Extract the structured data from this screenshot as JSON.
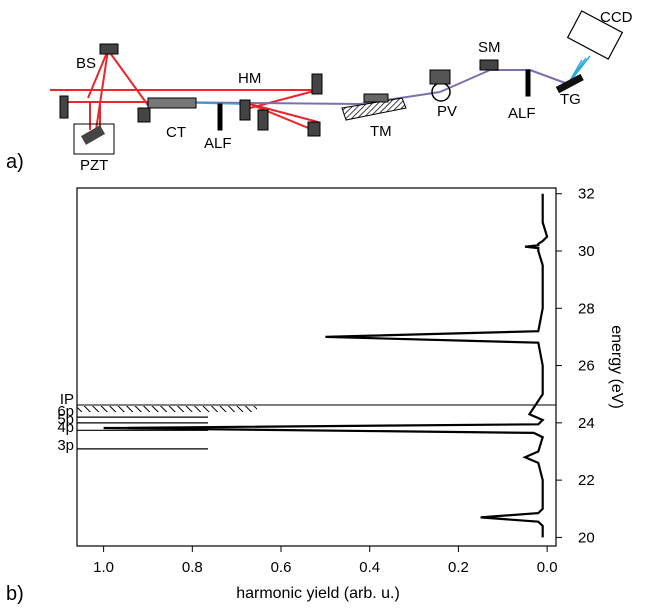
{
  "panel_a": {
    "label": "a)",
    "components": {
      "hm": "HM",
      "bs": "BS",
      "pzt": "PZT",
      "ct": "CT",
      "alf1": "ALF",
      "alf2": "ALF",
      "tm": "TM",
      "pv": "PV",
      "sm": "SM",
      "tg": "TG",
      "ccd": "CCD"
    },
    "colors": {
      "beam_ir": "#e8262b",
      "beam_xuv": "#7a6fb0",
      "beam_xuv_out": "#29a9e0"
    }
  },
  "panel_b": {
    "label": "b)",
    "levels": [
      {
        "label": "IP",
        "energy": 24.59
      },
      {
        "label": "6p",
        "energy": 24.2
      },
      {
        "label": "5p",
        "energy": 24.0
      },
      {
        "label": "4p",
        "energy": 23.74
      },
      {
        "label": "3p",
        "energy": 23.09
      }
    ]
  },
  "chart_data": {
    "type": "line",
    "xlabel": "harmonic yield (arb. u.)",
    "ylabel": "energy (eV)",
    "xlim": [
      1.06,
      -0.02
    ],
    "ylim": [
      19.7,
      32.2
    ],
    "x_ticks": [
      "1.0",
      "0.8",
      "0.6",
      "0.4",
      "0.2",
      "0.0"
    ],
    "x_tick_values": [
      1.0,
      0.8,
      0.6,
      0.4,
      0.2,
      0.0
    ],
    "y_ticks": [
      "20",
      "22",
      "24",
      "26",
      "28",
      "30",
      "32"
    ],
    "y_tick_values": [
      20,
      22,
      24,
      26,
      28,
      30,
      32
    ],
    "x_axis_reversed": true,
    "y_axis_side": "right",
    "series": [
      {
        "x": [
          0.01,
          0.01,
          0.0,
          0.01,
          0.02,
          0.02,
          0.05,
          0.02,
          0.02,
          0.01,
          0.01,
          0.02,
          0.5,
          0.02,
          0.01,
          0.01,
          0.04,
          0.01,
          0.02,
          1.0,
          0.03,
          0.01,
          0.02,
          0.05,
          0.02,
          0.01,
          0.01,
          0.02,
          0.15,
          0.02,
          0.01,
          0.01,
          0.01
        ],
        "y": [
          32.0,
          31.0,
          30.5,
          30.35,
          30.25,
          30.2,
          30.15,
          30.1,
          30.0,
          29.5,
          28.0,
          27.2,
          27.0,
          26.8,
          26.0,
          25.0,
          24.3,
          24.1,
          23.95,
          23.82,
          23.65,
          23.5,
          23.0,
          22.8,
          22.6,
          22.0,
          21.0,
          20.85,
          20.7,
          20.55,
          20.4,
          20.2,
          20.0
        ]
      }
    ]
  }
}
